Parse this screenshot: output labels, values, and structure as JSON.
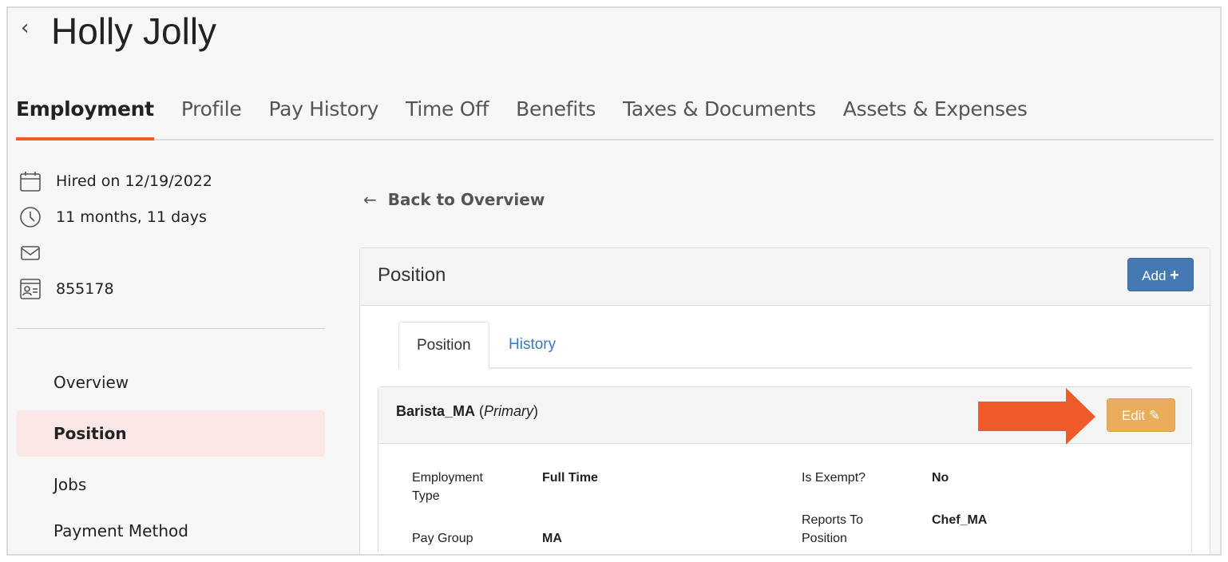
{
  "header": {
    "back_icon": "chevron-left-icon",
    "title": "Holly Jolly"
  },
  "tabs": [
    {
      "label": "Employment",
      "active": true
    },
    {
      "label": "Profile"
    },
    {
      "label": "Pay History"
    },
    {
      "label": "Time Off"
    },
    {
      "label": "Benefits"
    },
    {
      "label": "Taxes & Documents"
    },
    {
      "label": "Assets & Expenses"
    }
  ],
  "info": {
    "hired": "Hired on 12/19/2022",
    "tenure": "11 months, 11 days",
    "email": "",
    "employee_id": "855178"
  },
  "sidebar": {
    "items": [
      {
        "label": "Overview"
      },
      {
        "label": "Position",
        "active": true
      },
      {
        "label": "Jobs"
      },
      {
        "label": "Payment Method"
      }
    ]
  },
  "main": {
    "back_link": "Back to Overview",
    "panel_title": "Position",
    "add_label": "Add",
    "subtabs": [
      "Position",
      "History"
    ],
    "card": {
      "name": "Barista_MA",
      "tag": "Primary",
      "edit_label": "Edit",
      "fields": [
        {
          "label": "Employment Type",
          "value": "Full Time"
        },
        {
          "label": "Pay Group",
          "value": "MA"
        },
        {
          "label": "Is Exempt?",
          "value": "No"
        },
        {
          "label": "Reports To Position",
          "value": "Chef_MA"
        }
      ]
    }
  },
  "colors": {
    "accent": "#ee5a2a",
    "add_button": "#4479b2",
    "edit_button": "#e9ad5c",
    "arrow": "#ee5a2a"
  }
}
